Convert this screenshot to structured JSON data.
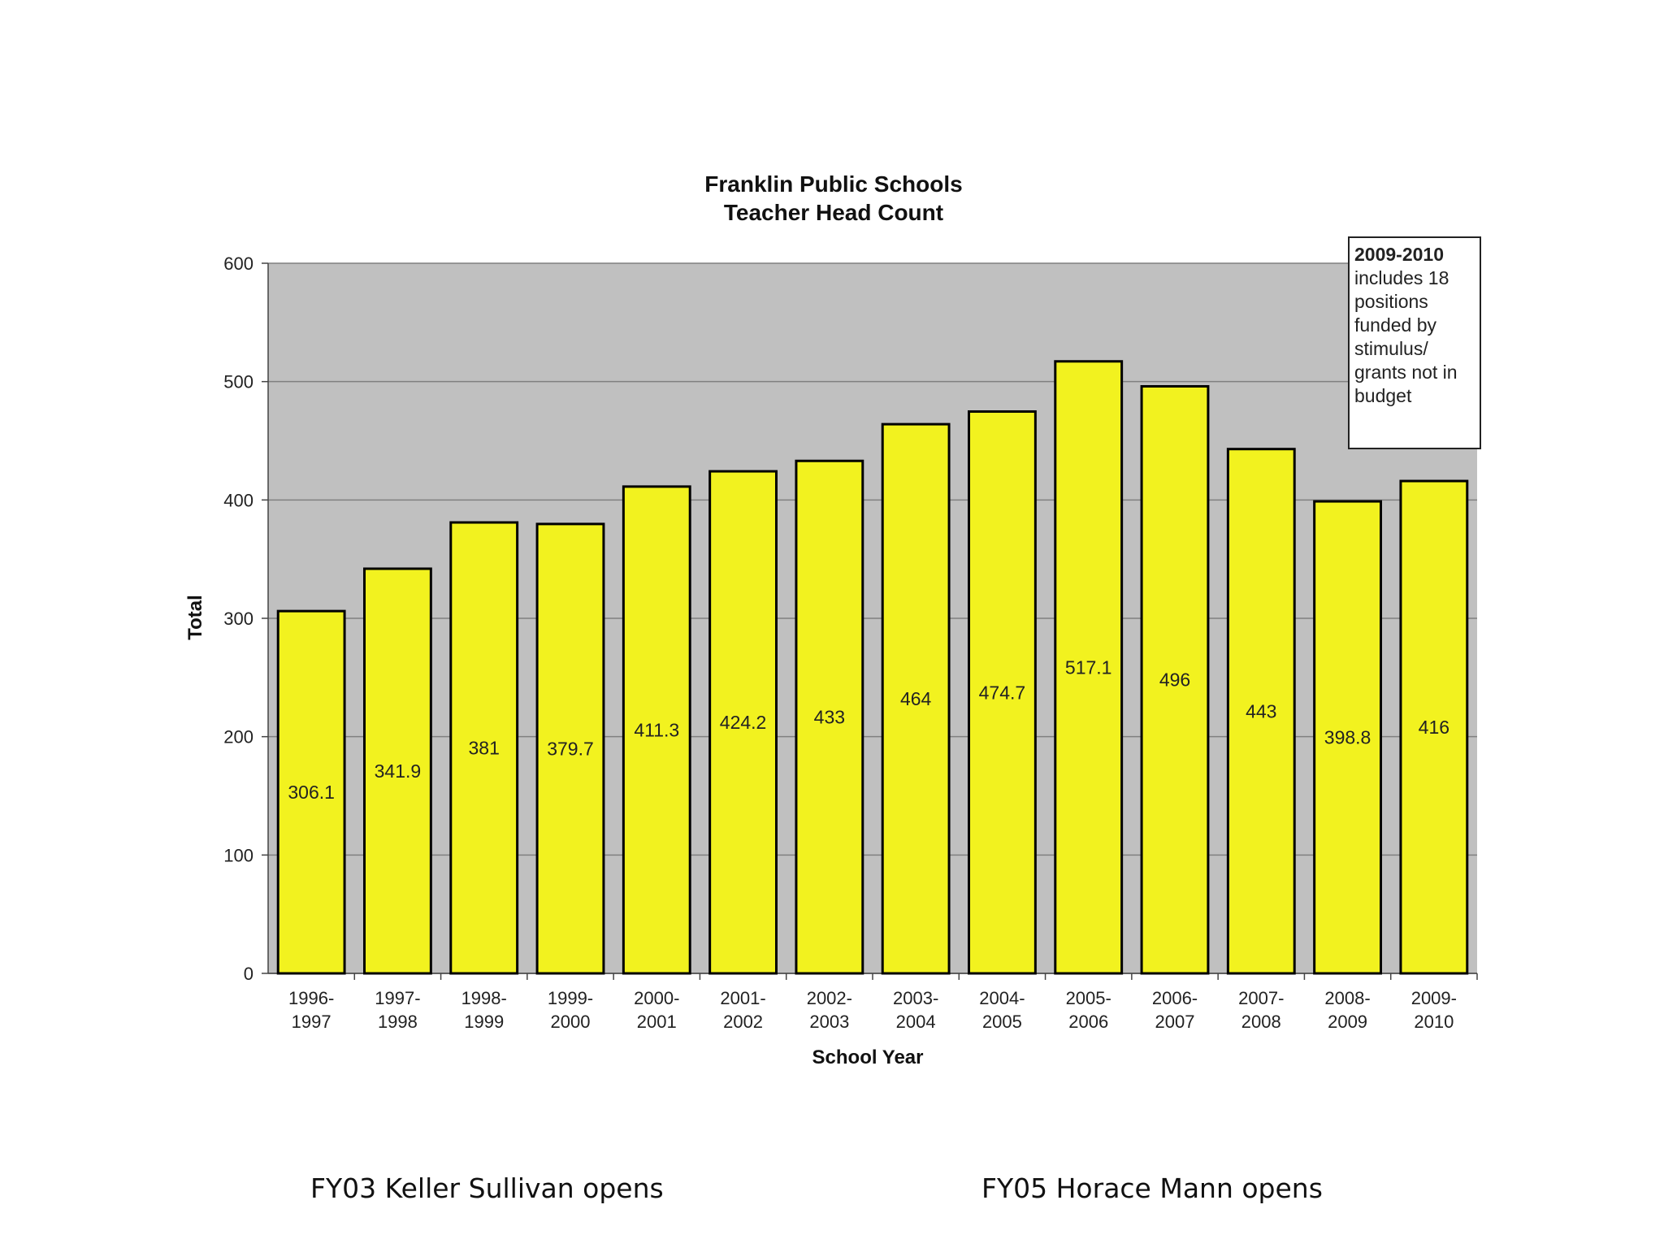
{
  "chart_data": {
    "type": "bar",
    "title": [
      "Franklin Public Schools",
      "Teacher Head Count"
    ],
    "xlabel": "School Year",
    "ylabel": "Total",
    "ylim": [
      0,
      600
    ],
    "yticks": [
      0,
      100,
      200,
      300,
      400,
      500,
      600
    ],
    "grid": true,
    "categories": [
      [
        "1996-",
        "1997"
      ],
      [
        "1997-",
        "1998"
      ],
      [
        "1998-",
        "1999"
      ],
      [
        "1999-",
        "2000"
      ],
      [
        "2000-",
        "2001"
      ],
      [
        "2001-",
        "2002"
      ],
      [
        "2002-",
        "2003"
      ],
      [
        "2003-",
        "2004"
      ],
      [
        "2004-",
        "2005"
      ],
      [
        "2005-",
        "2006"
      ],
      [
        "2006-",
        "2007"
      ],
      [
        "2007-",
        "2008"
      ],
      [
        "2008-",
        "2009"
      ],
      [
        "2009-",
        "2010"
      ]
    ],
    "values": [
      306.1,
      341.9,
      381,
      379.7,
      411.3,
      424.2,
      433,
      464,
      474.7,
      517.1,
      496,
      443,
      398.8,
      416
    ],
    "value_labels": [
      "306.1",
      "341.9",
      "381",
      "379.7",
      "411.3",
      "424.2",
      "433",
      "464",
      "474.7",
      "517.1",
      "496",
      "443",
      "398.8",
      "416"
    ],
    "colors": {
      "bar": "#f2f21f",
      "plot_bg": "#c0c0c0",
      "grid": "#808080",
      "bar_stroke": "#000000"
    }
  },
  "annotation": {
    "heading": "2009-2010",
    "lines": [
      "includes 18",
      "positions",
      "funded by",
      "stimulus/",
      "grants not in",
      "budget"
    ]
  },
  "captions": {
    "left": "FY03 Keller Sullivan opens",
    "right": "FY05 Horace Mann opens"
  }
}
